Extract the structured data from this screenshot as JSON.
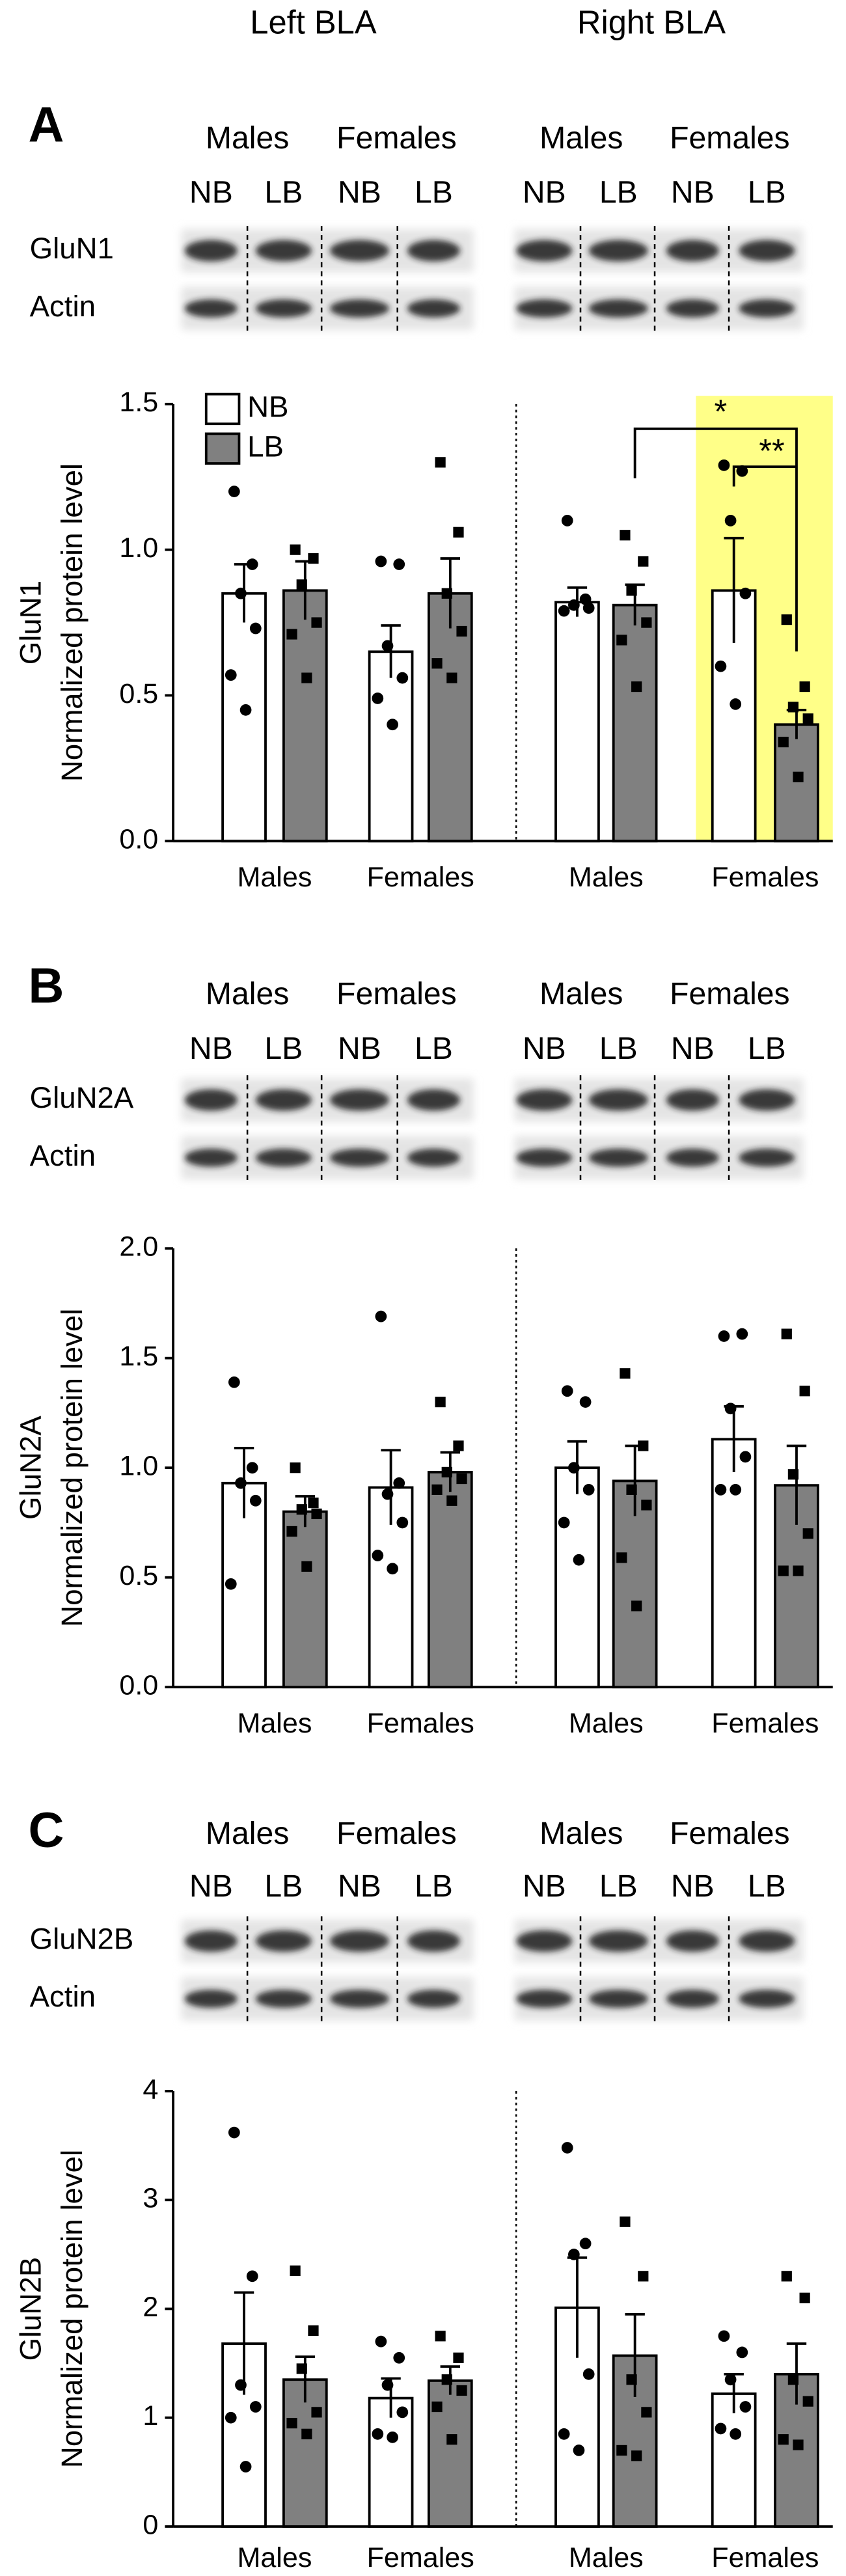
{
  "columns": [
    "Left BLA",
    "Right BLA"
  ],
  "chart_data": [
    {
      "type": "bar",
      "panel": "A",
      "sexes": [
        "Males",
        "Females",
        "Males",
        "Females"
      ],
      "lanes": [
        "NB",
        "LB",
        "NB",
        "LB",
        "NB",
        "LB",
        "NB",
        "LB"
      ],
      "proteins": [
        "GluN1",
        "Actin"
      ],
      "ylabel": "Normalized protein level",
      "ylabel_protein": "GluN1",
      "categories": [
        "Males",
        "Females",
        "Males",
        "Females"
      ],
      "ylim": [
        0,
        1.5
      ],
      "yticks": [
        {
          "value": 0,
          "label": "0.0"
        },
        0.5,
        {
          "value": 1,
          "label": "1.0"
        },
        1.5
      ],
      "legend": true,
      "annotations": [
        "*",
        "**"
      ],
      "series": [
        {
          "name": "NB",
          "color": "#ffffff",
          "marker": "circle",
          "values": [
            0.85,
            0.65,
            0.82,
            0.86
          ],
          "errors": [
            0.1,
            0.09,
            0.05,
            0.18
          ],
          "points": [
            [
              1.2,
              0.95,
              0.85,
              0.73,
              0.57,
              0.45
            ],
            [
              0.96,
              0.95,
              0.67,
              0.56,
              0.49,
              0.4
            ],
            [
              1.1,
              0.83,
              0.81,
              0.8,
              0.79
            ],
            [
              1.29,
              1.27,
              1.1,
              0.85,
              0.6,
              0.47
            ]
          ]
        },
        {
          "name": "LB",
          "color": "#808080",
          "marker": "square",
          "values": [
            0.86,
            0.85,
            0.81,
            0.4
          ],
          "errors": [
            0.1,
            0.12,
            0.07,
            0.05
          ],
          "points": [
            [
              1.0,
              0.97,
              0.88,
              0.75,
              0.71,
              0.56
            ],
            [
              1.3,
              1.06,
              0.85,
              0.72,
              0.61,
              0.56
            ],
            [
              1.05,
              0.96,
              0.86,
              0.75,
              0.69,
              0.53
            ],
            [
              0.76,
              0.53,
              0.46,
              0.42,
              0.34,
              0.22
            ]
          ]
        }
      ]
    },
    {
      "type": "bar",
      "panel": "B",
      "sexes": [
        "Males",
        "Females",
        "Males",
        "Females"
      ],
      "lanes": [
        "NB",
        "LB",
        "NB",
        "LB",
        "NB",
        "LB",
        "NB",
        "LB"
      ],
      "proteins": [
        "GluN2A",
        "Actin"
      ],
      "ylabel": "Normalized protein level",
      "ylabel_protein": "GluN2A",
      "categories": [
        "Males",
        "Females",
        "Males",
        "Females"
      ],
      "ylim": [
        0,
        2.0
      ],
      "yticks": [
        {
          "value": 0,
          "label": "0.0"
        },
        0.5,
        {
          "value": 1,
          "label": "1.0"
        },
        1.5,
        {
          "value": 2,
          "label": "2.0"
        }
      ],
      "legend": false,
      "series": [
        {
          "color": "#ffffff",
          "marker": "circle",
          "values": [
            0.93,
            0.91,
            1.0,
            1.13
          ],
          "errors": [
            0.16,
            0.17,
            0.12,
            0.15
          ],
          "points": [
            [
              1.39,
              1.0,
              0.93,
              0.85,
              0.47
            ],
            [
              1.69,
              0.93,
              0.88,
              0.75,
              0.6,
              0.54
            ],
            [
              1.35,
              1.3,
              1.0,
              0.9,
              0.75,
              0.58
            ],
            [
              1.6,
              1.61,
              1.27,
              1.05,
              0.9,
              0.9
            ]
          ]
        },
        {
          "color": "#808080",
          "marker": "square",
          "values": [
            0.8,
            0.98,
            0.94,
            0.92
          ],
          "errors": [
            0.07,
            0.09,
            0.16,
            0.18
          ],
          "points": [
            [
              1.0,
              0.84,
              0.81,
              0.79,
              0.71,
              0.55
            ],
            [
              1.3,
              1.1,
              0.98,
              0.95,
              0.9,
              0.85
            ],
            [
              1.43,
              1.1,
              0.9,
              0.83,
              0.59,
              0.37
            ],
            [
              1.61,
              1.35,
              0.97,
              0.7,
              0.53,
              0.53
            ]
          ]
        }
      ]
    },
    {
      "type": "bar",
      "panel": "C",
      "sexes": [
        "Males",
        "Females",
        "Males",
        "Females"
      ],
      "lanes": [
        "NB",
        "LB",
        "NB",
        "LB",
        "NB",
        "LB",
        "NB",
        "LB"
      ],
      "proteins": [
        "GluN2B",
        "Actin"
      ],
      "ylabel": "Normalized protein level",
      "ylabel_protein": "GluN2B",
      "categories": [
        "Males",
        "Females",
        "Males",
        "Females"
      ],
      "ylim": [
        0,
        4
      ],
      "yticks": [
        0,
        1,
        2,
        3,
        4
      ],
      "legend": false,
      "series": [
        {
          "color": "#ffffff",
          "marker": "circle",
          "values": [
            1.68,
            1.18,
            2.01,
            1.22
          ],
          "errors": [
            0.47,
            0.18,
            0.46,
            0.18
          ],
          "points": [
            [
              3.62,
              2.3,
              1.3,
              1.1,
              1.0,
              0.55
            ],
            [
              1.7,
              1.55,
              1.3,
              1.05,
              0.85,
              0.82
            ],
            [
              3.48,
              2.6,
              2.5,
              1.4,
              0.85,
              0.7
            ],
            [
              1.75,
              1.6,
              1.35,
              1.1,
              0.9,
              0.85
            ]
          ]
        },
        {
          "color": "#808080",
          "marker": "square",
          "values": [
            1.35,
            1.34,
            1.57,
            1.4
          ],
          "errors": [
            0.21,
            0.13,
            0.38,
            0.28
          ],
          "points": [
            [
              2.35,
              1.8,
              1.45,
              1.05,
              0.95,
              0.85
            ],
            [
              1.75,
              1.55,
              1.35,
              1.25,
              1.1,
              0.8
            ],
            [
              2.8,
              2.3,
              1.35,
              1.05,
              0.7,
              0.65
            ],
            [
              2.3,
              2.1,
              1.35,
              1.15,
              0.8,
              0.75
            ]
          ]
        }
      ]
    }
  ]
}
